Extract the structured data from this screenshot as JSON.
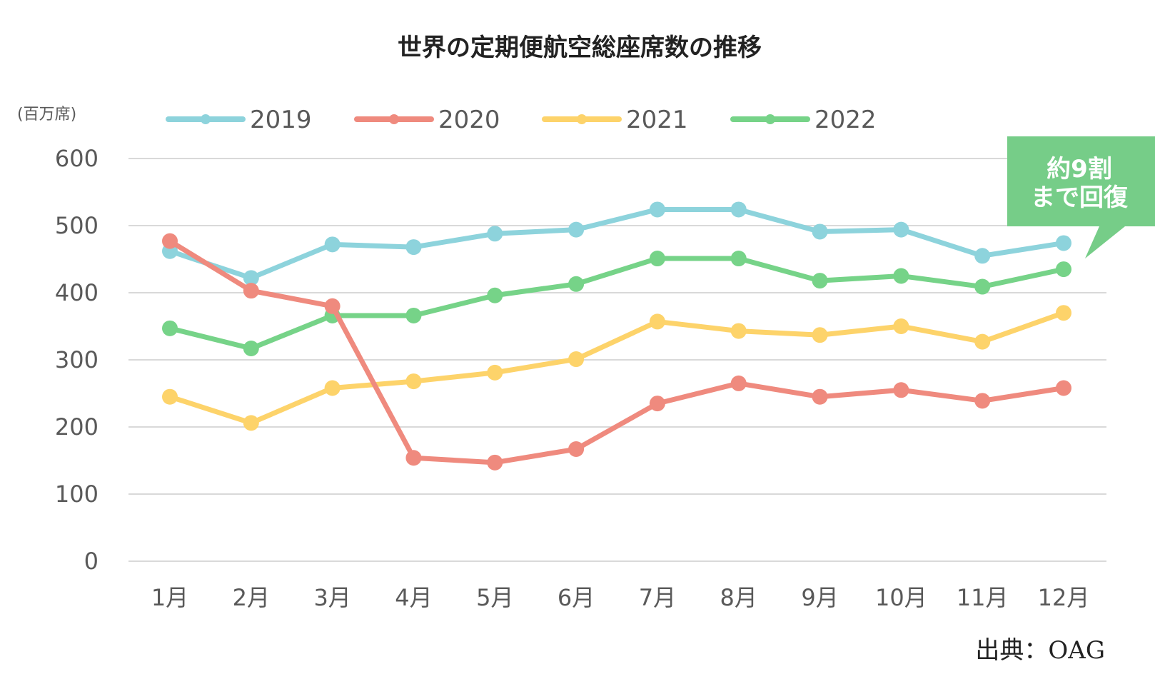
{
  "chart_data": {
    "type": "line",
    "title": "世界の定期便航空総座席数の推移",
    "unit_label": "(百万席)",
    "categories": [
      "1月",
      "2月",
      "3月",
      "4月",
      "5月",
      "6月",
      "7月",
      "8月",
      "9月",
      "10月",
      "11月",
      "12月"
    ],
    "ylim": [
      0,
      600
    ],
    "yticks": [
      "0",
      "100",
      "200",
      "300",
      "400",
      "500",
      "600"
    ],
    "grid": true,
    "legend_position": "top",
    "series": [
      {
        "name": "2019",
        "color": "#8dd3dc",
        "values": [
          462,
          422,
          472,
          468,
          488,
          494,
          524,
          524,
          491,
          494,
          455,
          474
        ]
      },
      {
        "name": "2020",
        "color": "#ef8a7e",
        "values": [
          477,
          403,
          380,
          154,
          147,
          167,
          235,
          265,
          245,
          255,
          239,
          258
        ]
      },
      {
        "name": "2021",
        "color": "#fdd36a",
        "values": [
          245,
          206,
          258,
          268,
          281,
          301,
          357,
          343,
          337,
          350,
          327,
          370
        ]
      },
      {
        "name": "2022",
        "color": "#76d388",
        "values": [
          347,
          317,
          366,
          366,
          396,
          413,
          451,
          451,
          418,
          425,
          409,
          435
        ]
      }
    ],
    "annotation": {
      "line1": "約9割",
      "line2": "まで回復",
      "color": "#76cd88"
    },
    "source": "出典：OAG"
  }
}
